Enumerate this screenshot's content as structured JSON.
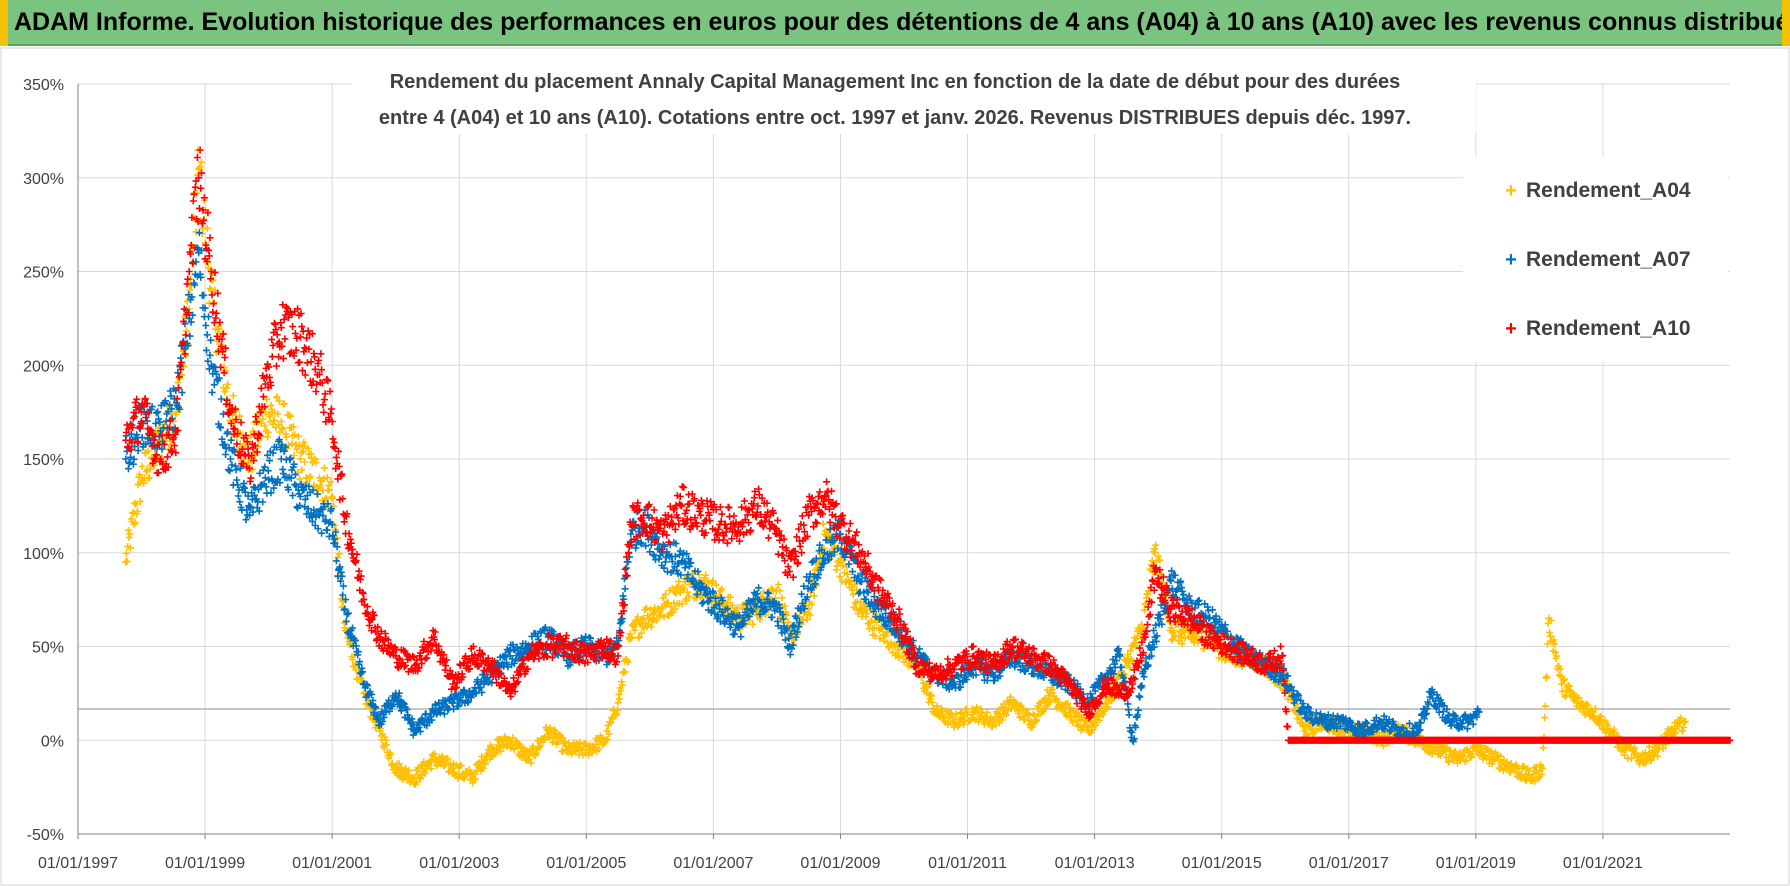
{
  "banner": {
    "title": "ADAM Informe. Evolution historique des performances en euros pour des détentions de 4 ans (A04) à 10 ans (A10) avec les revenus connus distribués"
  },
  "colors": {
    "banner": "#7bc47f",
    "series_A04": "#ffc000",
    "series_A07": "#0070c0",
    "series_A10": "#ff0000",
    "grid": "#d9d9d9"
  },
  "chart_data": {
    "type": "scatter",
    "title_lines": [
      "Rendement du placement Annaly Capital Management Inc en fonction de la date de début pour des durées",
      "entre 4 (A04) et 10 ans (A10).  Cotations entre oct. 1997 et janv. 2026.  Revenus DISTRIBUES depuis déc. 1997."
    ],
    "xlabel": "",
    "ylabel": "",
    "x_range": [
      1997.0,
      2023.0
    ],
    "y_range": [
      -50,
      350
    ],
    "x_tick_years": [
      1997,
      1999,
      2001,
      2003,
      2005,
      2007,
      2009,
      2011,
      2013,
      2015,
      2017,
      2019,
      2021
    ],
    "x_tick_labels": [
      "01/01/1997",
      "01/01/1999",
      "01/01/2001",
      "01/01/2003",
      "01/01/2005",
      "01/01/2007",
      "01/01/2009",
      "01/01/2011",
      "01/01/2013",
      "01/01/2015",
      "01/01/2017",
      "01/01/2019",
      "01/01/2021"
    ],
    "y_ticks": [
      -50,
      0,
      50,
      100,
      150,
      200,
      250,
      300,
      350
    ],
    "y_tick_labels": [
      "-50%",
      "0%",
      "50%",
      "100%",
      "150%",
      "200%",
      "250%",
      "300%",
      "350%"
    ],
    "legend_position": "top-right",
    "series": [
      {
        "name": "Rendement_A04",
        "color": "#ffc000",
        "x": [
          1997.75,
          1998.0,
          1998.3,
          1998.55,
          1998.75,
          1998.9,
          1999.1,
          1999.4,
          1999.7,
          1999.95,
          2000.2,
          2000.5,
          2000.8,
          2001.0,
          2001.2,
          2001.5,
          2001.75,
          2002.0,
          2002.3,
          2002.6,
          2002.9,
          2003.2,
          2003.5,
          2003.8,
          2004.1,
          2004.4,
          2004.7,
          2005.0,
          2005.3,
          2005.5,
          2005.7,
          2005.9,
          2006.2,
          2006.5,
          2006.8,
          2007.1,
          2007.4,
          2007.7,
          2008.0,
          2008.2,
          2008.5,
          2008.75,
          2009.0,
          2009.3,
          2009.6,
          2009.9,
          2010.2,
          2010.5,
          2010.8,
          2011.1,
          2011.4,
          2011.7,
          2012.0,
          2012.3,
          2012.6,
          2012.9,
          2013.2,
          2013.5,
          2013.75,
          2013.95,
          2014.2,
          2014.5,
          2014.8,
          2015.1,
          2015.4,
          2015.7,
          2016.0,
          2016.3,
          2016.6,
          2016.9,
          2017.2,
          2017.5,
          2017.8,
          2018.1,
          2018.4,
          2018.7,
          2019.0,
          2019.3,
          2019.6,
          2019.85,
          2020.05,
          2020.15,
          2020.35,
          2020.6,
          2020.85,
          2021.1,
          2021.35,
          2021.6,
          2021.85,
          2022.1,
          2022.3
        ],
        "y": [
          95,
          140,
          160,
          175,
          230,
          305,
          240,
          175,
          150,
          175,
          170,
          150,
          140,
          130,
          60,
          25,
          5,
          -15,
          -20,
          -10,
          -15,
          -20,
          -5,
          0,
          -10,
          5,
          -5,
          -5,
          0,
          20,
          55,
          65,
          70,
          80,
          85,
          75,
          65,
          70,
          80,
          55,
          70,
          110,
          95,
          70,
          60,
          50,
          40,
          15,
          10,
          15,
          10,
          20,
          10,
          25,
          15,
          5,
          20,
          40,
          60,
          100,
          60,
          55,
          55,
          45,
          45,
          40,
          30,
          5,
          10,
          5,
          5,
          0,
          5,
          0,
          -5,
          -10,
          -5,
          -10,
          -15,
          -20,
          -15,
          65,
          30,
          20,
          15,
          5,
          -5,
          -10,
          -5,
          5,
          10
        ]
      },
      {
        "name": "Rendement_A07",
        "color": "#0070c0",
        "x": [
          1997.75,
          1998.0,
          1998.3,
          1998.55,
          1998.75,
          1998.9,
          1999.1,
          1999.4,
          1999.7,
          1999.95,
          2000.2,
          2000.5,
          2000.8,
          2001.0,
          2001.2,
          2001.5,
          2001.75,
          2002.0,
          2002.3,
          2002.6,
          2002.9,
          2003.2,
          2003.5,
          2003.8,
          2004.1,
          2004.4,
          2004.7,
          2005.0,
          2005.3,
          2005.5,
          2005.7,
          2005.9,
          2006.2,
          2006.5,
          2006.8,
          2007.1,
          2007.4,
          2007.7,
          2008.0,
          2008.2,
          2008.5,
          2008.75,
          2009.0,
          2009.3,
          2009.6,
          2009.9,
          2010.2,
          2010.5,
          2010.8,
          2011.1,
          2011.4,
          2011.7,
          2012.0,
          2012.3,
          2012.6,
          2012.9,
          2013.2,
          2013.4,
          2013.6,
          2013.8,
          2013.95,
          2014.2,
          2014.5,
          2014.8,
          2015.1,
          2015.4,
          2015.7,
          2015.95,
          2016.3,
          2016.6,
          2016.9,
          2017.2,
          2017.5,
          2017.8,
          2018.1,
          2018.3,
          2018.6,
          2018.9,
          2019.05
        ],
        "y": [
          150,
          170,
          165,
          180,
          225,
          260,
          200,
          150,
          120,
          140,
          150,
          130,
          120,
          115,
          70,
          30,
          10,
          25,
          5,
          15,
          20,
          25,
          35,
          45,
          50,
          55,
          45,
          50,
          45,
          50,
          110,
          115,
          100,
          95,
          80,
          70,
          60,
          75,
          70,
          50,
          85,
          100,
          110,
          85,
          70,
          60,
          45,
          35,
          30,
          40,
          35,
          45,
          40,
          35,
          30,
          20,
          35,
          45,
          0,
          40,
          55,
          85,
          70,
          65,
          55,
          45,
          40,
          35,
          15,
          10,
          10,
          5,
          10,
          5,
          5,
          25,
          10,
          10,
          15
        ]
      },
      {
        "name": "Rendement_A10",
        "color": "#ff0000",
        "x": [
          1997.75,
          1998.0,
          1998.3,
          1998.55,
          1998.75,
          1998.9,
          1999.1,
          1999.4,
          1999.7,
          1999.95,
          2000.2,
          2000.5,
          2000.8,
          2001.0,
          2001.2,
          2001.5,
          2001.75,
          2002.0,
          2002.3,
          2002.6,
          2002.9,
          2003.2,
          2003.5,
          2003.8,
          2004.1,
          2004.4,
          2004.7,
          2005.0,
          2005.3,
          2005.5,
          2005.7,
          2005.9,
          2006.2,
          2006.5,
          2006.8,
          2007.1,
          2007.4,
          2007.7,
          2008.0,
          2008.2,
          2008.5,
          2008.75,
          2009.0,
          2009.3,
          2009.6,
          2009.9,
          2010.2,
          2010.5,
          2010.8,
          2011.1,
          2011.4,
          2011.7,
          2012.0,
          2012.3,
          2012.6,
          2012.9,
          2013.2,
          2013.4,
          2013.6,
          2013.8,
          2013.95,
          2014.2,
          2014.5,
          2014.8,
          2015.1,
          2015.4,
          2015.7,
          2015.95,
          2016.05,
          2016.5,
          2017.0,
          2017.5,
          2018.0,
          2018.5,
          2019.0,
          2019.5,
          2020.0,
          2020.5,
          2021.0,
          2021.5,
          2022.0,
          2022.5,
          2023.0
        ],
        "y": [
          160,
          175,
          150,
          165,
          250,
          300,
          250,
          175,
          145,
          190,
          220,
          215,
          195,
          170,
          120,
          75,
          55,
          45,
          40,
          55,
          30,
          45,
          40,
          25,
          45,
          50,
          50,
          45,
          50,
          45,
          115,
          120,
          110,
          125,
          120,
          115,
          115,
          125,
          110,
          90,
          120,
          130,
          115,
          100,
          80,
          65,
          40,
          35,
          40,
          45,
          40,
          50,
          45,
          40,
          30,
          15,
          30,
          25,
          30,
          55,
          90,
          70,
          65,
          55,
          50,
          45,
          40,
          45,
          0,
          0,
          0,
          0,
          0,
          0,
          0,
          0,
          0,
          0,
          0,
          0,
          0,
          0,
          0
        ]
      }
    ]
  }
}
